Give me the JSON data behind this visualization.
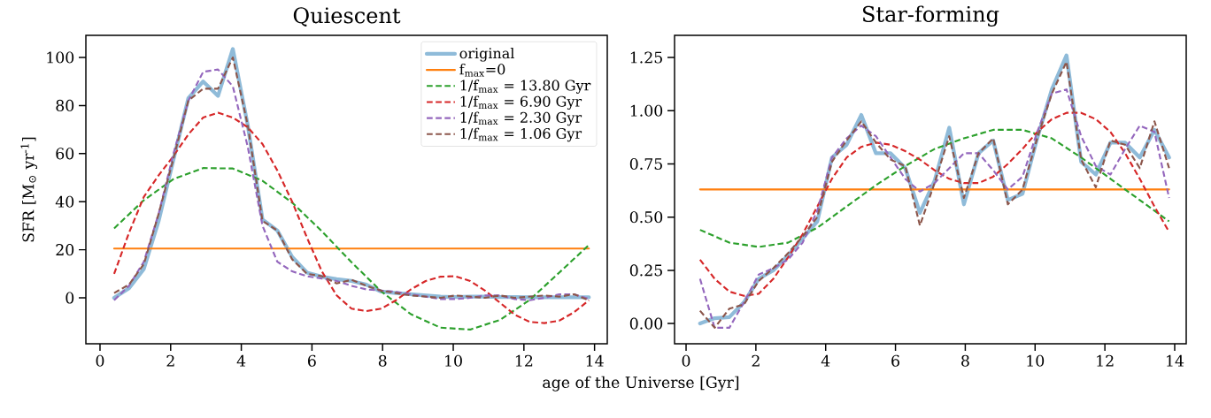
{
  "chart_data": [
    {
      "type": "line",
      "title": "Quiescent",
      "xlabel": "age of the Universe [Gyr]",
      "ylabel": "SFR [M$_{⊙}$ yr$^{-1}$]",
      "x": [
        0.4,
        0.82,
        1.24,
        1.66,
        2.08,
        2.5,
        2.92,
        3.34,
        3.76,
        4.18,
        4.6,
        5.02,
        5.44,
        5.86,
        6.28,
        6.7,
        7.12,
        7.54,
        7.96,
        8.38,
        8.8,
        9.22,
        9.64,
        10.06,
        10.48,
        10.9,
        11.32,
        11.74,
        12.16,
        12.58,
        13.0,
        13.42,
        13.84
      ],
      "xlim": [
        -0.4,
        14.36
      ],
      "ylim": [
        -19.1,
        109.2
      ],
      "xticks": [
        0,
        2,
        4,
        6,
        8,
        10,
        12,
        14
      ],
      "yticks": [
        0,
        20,
        40,
        60,
        80,
        100
      ],
      "legend": "top right",
      "series": [
        {
          "name": "original",
          "color": "#8fbbd9",
          "line_style": "solid",
          "values": [
            0,
            4,
            12,
            32,
            57.5,
            83,
            90,
            84,
            103.5,
            72,
            32.6,
            28,
            17,
            10.5,
            8.8,
            7.8,
            7,
            5.5,
            2.6,
            2,
            1.5,
            1,
            0.5,
            0.3,
            0.5,
            0.5,
            0.3,
            0.3,
            0.2,
            0.2,
            0.2,
            0.2,
            0.2
          ]
        },
        {
          "name": "f$_{max}$=0",
          "color": "#ff7f0e",
          "line_style": "solid",
          "x": [
            0.4,
            13.84
          ],
          "values": [
            20.5,
            20.5
          ]
        },
        {
          "name": "1/f$_{max}$ = 13.80 Gyr",
          "color": "#2ca02c",
          "line_style": "dashed",
          "x": [
            0.4,
            1.24,
            2.08,
            2.92,
            3.76,
            4.6,
            5.44,
            6.28,
            7.12,
            7.96,
            8.8,
            9.64,
            10.48,
            11.32,
            12.16,
            13.0,
            13.84
          ],
          "values": [
            28.9,
            40.6,
            49.4,
            54,
            53.8,
            48.7,
            39.6,
            27.7,
            14.8,
            2.7,
            -6.8,
            -12.4,
            -13.2,
            -9.2,
            -0.9,
            10.5,
            22
          ]
        },
        {
          "name": "1/f$_{max}$ = 6.90 Gyr",
          "color": "#d62728",
          "line_style": "dashed",
          "values": [
            10,
            27,
            42,
            51,
            59,
            68,
            75,
            77,
            75,
            71,
            64,
            53,
            40,
            25,
            11,
            1,
            -4.5,
            -5.5,
            -4.5,
            -1,
            3.5,
            7,
            8.8,
            9,
            7,
            3,
            -2,
            -7,
            -10,
            -10.5,
            -9.5,
            -6,
            -1
          ]
        },
        {
          "name": "1/f$_{max}$ = 2.30 Gyr",
          "color": "#9467bd",
          "line_style": "dashed",
          "values": [
            -1,
            5,
            15,
            35,
            60,
            82,
            94,
            95,
            88,
            63,
            30,
            15,
            11,
            9,
            8,
            7,
            5,
            3.5,
            3,
            2.5,
            1.5,
            0.5,
            -0.5,
            -0.5,
            0,
            1,
            1,
            -0.5,
            -1,
            0,
            1.5,
            1.5,
            -0.5
          ]
        },
        {
          "name": "1/f$_{max}$ = 1.06 Gyr",
          "color": "#8c564b",
          "line_style": "dashed",
          "values": [
            2,
            5.5,
            14,
            35,
            58,
            82,
            87,
            87,
            100,
            72,
            32,
            28,
            16,
            10,
            9,
            6,
            7.5,
            5,
            3,
            2,
            1,
            0.5,
            0,
            1,
            0.5,
            0,
            1,
            0,
            0.5,
            1,
            0.5,
            1.5,
            -1
          ]
        }
      ]
    },
    {
      "type": "line",
      "title": "Star-forming",
      "x": [
        0.4,
        0.82,
        1.24,
        1.66,
        2.08,
        2.5,
        2.92,
        3.34,
        3.76,
        4.18,
        4.6,
        5.02,
        5.44,
        5.86,
        6.28,
        6.7,
        7.12,
        7.54,
        7.96,
        8.38,
        8.8,
        9.22,
        9.64,
        10.06,
        10.48,
        10.9,
        11.32,
        11.74,
        12.16,
        12.58,
        13.0,
        13.42,
        13.84
      ],
      "xlim": [
        -0.33,
        14.33
      ],
      "ylim": [
        -0.095,
        1.354
      ],
      "xticks": [
        0,
        2,
        4,
        6,
        8,
        10,
        12,
        14
      ],
      "yticks": [
        {
          "value": 0,
          "label": "0.00"
        },
        {
          "value": 0.25,
          "label": "0.25"
        },
        {
          "value": 0.5,
          "label": "0.50"
        },
        {
          "value": 0.75,
          "label": "0.75"
        },
        {
          "value": 1,
          "label": "1.00"
        },
        {
          "value": 1.25,
          "label": "1.25"
        }
      ],
      "series": [
        {
          "color": "#8fbbd9",
          "line_style": "solid",
          "values": [
            0,
            0.025,
            0.03,
            0.1,
            0.21,
            0.25,
            0.32,
            0.4,
            0.48,
            0.78,
            0.84,
            0.98,
            0.8,
            0.8,
            0.73,
            0.52,
            0.67,
            0.92,
            0.56,
            0.8,
            0.86,
            0.58,
            0.61,
            0.87,
            1.1,
            1.26,
            0.76,
            0.7,
            0.85,
            0.85,
            0.78,
            0.91,
            0.78
          ]
        },
        {
          "color": "#ff7f0e",
          "line_style": "solid",
          "x": [
            0.4,
            13.84
          ],
          "values": [
            0.63,
            0.63
          ]
        },
        {
          "color": "#2ca02c",
          "line_style": "dashed",
          "x": [
            0.4,
            1.24,
            2.08,
            2.92,
            3.76,
            4.6,
            5.44,
            6.28,
            7.12,
            7.96,
            8.8,
            9.64,
            10.48,
            11.32,
            12.16,
            13.0,
            13.84
          ],
          "values": [
            0.44,
            0.38,
            0.36,
            0.38,
            0.45,
            0.55,
            0.65,
            0.74,
            0.82,
            0.87,
            0.91,
            0.91,
            0.87,
            0.78,
            0.68,
            0.58,
            0.48
          ]
        },
        {
          "color": "#d62728",
          "line_style": "dashed",
          "values": [
            0.3,
            0.21,
            0.15,
            0.13,
            0.14,
            0.21,
            0.31,
            0.42,
            0.55,
            0.68,
            0.78,
            0.83,
            0.85,
            0.84,
            0.81,
            0.77,
            0.72,
            0.68,
            0.66,
            0.66,
            0.69,
            0.75,
            0.82,
            0.9,
            0.96,
            0.99,
            0.99,
            0.96,
            0.9,
            0.8,
            0.68,
            0.55,
            0.43
          ]
        },
        {
          "color": "#9467bd",
          "line_style": "dashed",
          "values": [
            0.21,
            -0.02,
            -0.02,
            0.1,
            0.23,
            0.26,
            0.3,
            0.38,
            0.53,
            0.78,
            0.87,
            0.93,
            0.88,
            0.78,
            0.68,
            0.62,
            0.66,
            0.73,
            0.8,
            0.8,
            0.72,
            0.63,
            0.69,
            0.9,
            1.08,
            1.1,
            0.88,
            0.74,
            0.7,
            0.82,
            0.93,
            0.9,
            0.59
          ]
        },
        {
          "color": "#8c564b",
          "line_style": "dashed",
          "values": [
            0.06,
            -0.02,
            0.07,
            0.09,
            0.2,
            0.26,
            0.33,
            0.41,
            0.5,
            0.76,
            0.86,
            0.95,
            0.85,
            0.77,
            0.74,
            0.46,
            0.66,
            0.88,
            0.59,
            0.8,
            0.87,
            0.56,
            0.63,
            0.87,
            1.08,
            1.23,
            0.77,
            0.64,
            0.86,
            0.84,
            0.73,
            0.95,
            0.73
          ]
        }
      ]
    }
  ]
}
